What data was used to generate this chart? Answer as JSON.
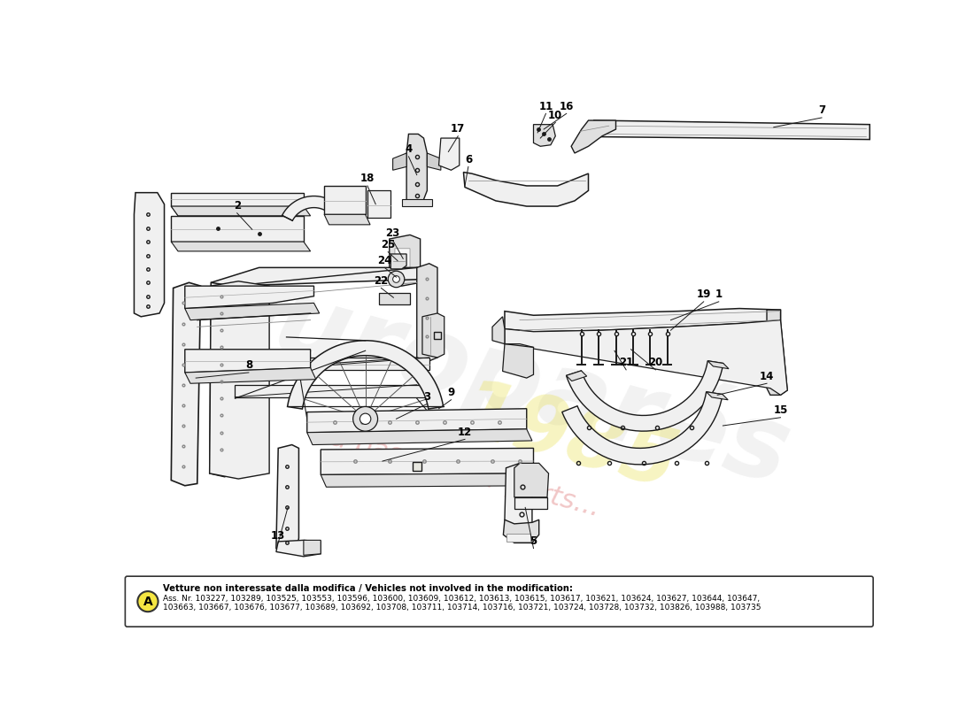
{
  "background_color": "#ffffff",
  "watermark_text": "europarés",
  "watermark_year": "1985",
  "watermark_subtext": "a passion for parts...",
  "footer_text_bold": "Vetture non interessate dalla modifica / Vehicles not involved in the modification:",
  "footer_text": "Ass. Nr. 103227, 103289, 103525, 103553, 103596, 103600, 103609, 103612, 103613, 103615, 103617, 103621, 103624, 103627, 103644, 103647,\n103663, 103667, 103676, 103677, 103689, 103692, 103708, 103711, 103714, 103716, 103721, 103724, 103728, 103732, 103826, 103988, 103735",
  "footer_label": "A",
  "line_color": "#1a1a1a",
  "fill_light": "#f0f0f0",
  "fill_mid": "#e0e0e0",
  "fill_dark": "#d0d0d0"
}
